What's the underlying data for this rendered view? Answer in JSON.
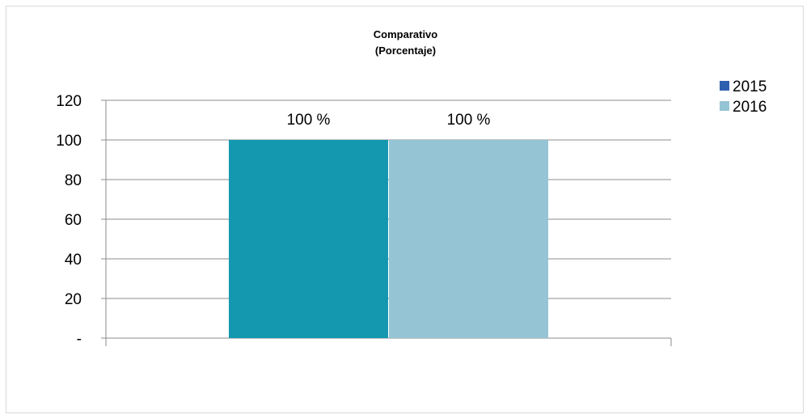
{
  "chart_data": {
    "type": "bar",
    "title": "Comparativo",
    "subtitle": "(Porcentaje)",
    "categories": [
      ""
    ],
    "series": [
      {
        "name": "2015",
        "values": [
          100
        ],
        "color": "#1398b0",
        "legend_color": "#2f5faf"
      },
      {
        "name": "2016",
        "values": [
          100
        ],
        "color": "#95c4d4",
        "legend_color": "#95c4d4"
      }
    ],
    "data_labels": [
      "100 %",
      "100 %"
    ],
    "yticks": [
      0,
      20,
      40,
      60,
      80,
      100,
      120
    ],
    "ytick_labels": [
      "-",
      "20",
      "40",
      "60",
      "80",
      "100",
      "120"
    ],
    "ylim": [
      0,
      120
    ],
    "grid": true,
    "legend_position": "top-right"
  }
}
